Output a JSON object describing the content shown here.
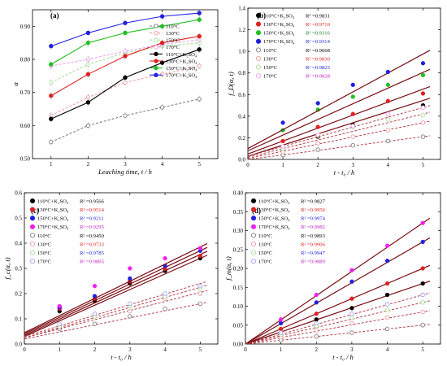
{
  "chart_data": [
    {
      "id": "a",
      "type": "line",
      "panel_label": "(a)",
      "xlabel": "Leaching time, t / h",
      "ylabel": "α",
      "xlim": [
        0.5,
        5.5
      ],
      "ylim": [
        0.5,
        0.95
      ],
      "xticks": [
        1,
        2,
        3,
        4,
        5
      ],
      "yticks": [
        0.5,
        0.6,
        0.7,
        0.8,
        0.9
      ],
      "x": [
        1,
        2,
        3,
        4,
        5
      ],
      "legend_position": "top-right",
      "series": [
        {
          "name": "110°C",
          "color": "#7f7f7f",
          "dashed": true,
          "values": [
            0.55,
            0.6,
            0.63,
            0.655,
            0.68
          ]
        },
        {
          "name": "130°C",
          "color": "#e8a0a0",
          "dashed": true,
          "values": [
            0.63,
            0.685,
            0.73,
            0.755,
            0.78
          ]
        },
        {
          "name": "150°C",
          "color": "#a6e29a",
          "dashed": true,
          "values": [
            0.73,
            0.785,
            0.82,
            0.84,
            0.85
          ]
        },
        {
          "name": "170°C",
          "color": "#f0a0ee",
          "dashed": true,
          "values": [
            0.78,
            0.8,
            0.825,
            0.845,
            0.86
          ]
        },
        {
          "name": "110°C+K₂SO₄",
          "color": "#000000",
          "dashed": false,
          "values": [
            0.62,
            0.67,
            0.745,
            0.79,
            0.83
          ]
        },
        {
          "name": "130°C+K₂SO₄",
          "color": "#e02020",
          "dashed": false,
          "values": [
            0.69,
            0.755,
            0.81,
            0.85,
            0.87
          ]
        },
        {
          "name": "150°C+K₂SO₄",
          "color": "#22c022",
          "dashed": false,
          "values": [
            0.785,
            0.85,
            0.88,
            0.9,
            0.92
          ]
        },
        {
          "name": "170°C+K₂SO₄",
          "color": "#2020e0",
          "dashed": false,
          "values": [
            0.84,
            0.88,
            0.91,
            0.93,
            0.94
          ]
        }
      ]
    },
    {
      "id": "b",
      "type": "scatter",
      "panel_label": "(b)",
      "xlabel": "t - t₀ / h",
      "ylabel": "f_D(α, t)",
      "xlim": [
        0,
        5.5
      ],
      "ylim": [
        0,
        1.4
      ],
      "xticks": [
        0,
        1,
        2,
        3,
        4,
        5
      ],
      "yticks": [
        0,
        0.2,
        0.4,
        0.6,
        0.8,
        1.0,
        1.2,
        1.4
      ],
      "x": [
        1,
        2,
        3,
        4,
        5
      ],
      "legend_position": "top-left",
      "series": [
        {
          "name": "110°C+K₂SO₄",
          "r2": "R² =0.9831",
          "r2_color": "#000000",
          "color": "#000000",
          "filled": true,
          "values": [
            0.08,
            0.21,
            0.32,
            0.42,
            0.5
          ],
          "fit": [
            0.03,
            0.103
          ]
        },
        {
          "name": "130°C+K₂SO₄",
          "r2": "R² =0.9710",
          "r2_color": "#e02020",
          "color": "#e02020",
          "filled": true,
          "values": [
            0.17,
            0.3,
            0.42,
            0.54,
            0.61
          ],
          "fit": [
            0.05,
            0.12
          ]
        },
        {
          "name": "150°C+K₂SO₄",
          "r2": "R² =0.9316",
          "r2_color": "#1f7a1f",
          "color": "#22c022",
          "filled": true,
          "values": [
            0.27,
            0.46,
            0.58,
            0.69,
            0.78
          ],
          "fit": [
            0.08,
            0.145
          ]
        },
        {
          "name": "170°C+K₂SO₄",
          "r2": "R² =0.9314",
          "r2_color": "#2020e0",
          "color": "#2020e0",
          "filled": true,
          "values": [
            0.34,
            0.52,
            0.69,
            0.81,
            0.89
          ],
          "fit": [
            0.1,
            0.175
          ]
        },
        {
          "name": "110°C",
          "r2": "R² =0.9668",
          "r2_color": "#000000",
          "color": "#7f7f7f",
          "filled": false,
          "values": [
            0.04,
            0.09,
            0.13,
            0.17,
            0.21
          ],
          "fit": [
            0.0,
            0.042
          ]
        },
        {
          "name": "130°C",
          "r2": "R² =0.9830",
          "r2_color": "#e02020",
          "color": "#e8a0a0",
          "filled": false,
          "values": [
            0.07,
            0.15,
            0.21,
            0.27,
            0.34
          ],
          "fit": [
            0.01,
            0.066
          ]
        },
        {
          "name": "150°C",
          "r2": "R² =0.9825",
          "r2_color": "#2020e0",
          "color": "#a6e29a",
          "filled": false,
          "values": [
            0.1,
            0.22,
            0.3,
            0.37,
            0.41
          ],
          "fit": [
            0.02,
            0.08
          ]
        },
        {
          "name": "170°C",
          "r2": "R² =0.9828",
          "r2_color": "#c020c0",
          "color": "#f0a0ee",
          "filled": false,
          "values": [
            0.12,
            0.23,
            0.31,
            0.42,
            0.48
          ],
          "fit": [
            0.03,
            0.09
          ]
        }
      ]
    },
    {
      "id": "c",
      "type": "scatter",
      "panel_label": "(c)",
      "xlabel": "t - t₀ / h",
      "ylabel": "f_c(α, t)",
      "xlim": [
        0,
        5.5
      ],
      "ylim": [
        0,
        0.6
      ],
      "xticks": [
        0,
        1,
        2,
        3,
        4,
        5
      ],
      "yticks": [
        0,
        0.1,
        0.2,
        0.3,
        0.4,
        0.5,
        0.6
      ],
      "x": [
        1,
        2,
        3,
        4,
        5
      ],
      "legend_position": "top-left",
      "series": [
        {
          "name": "110°C+K₂SO₄",
          "r2": "R² =0.9566",
          "r2_color": "#000000",
          "color": "#000000",
          "filled": true,
          "values": [
            0.13,
            0.17,
            0.24,
            0.29,
            0.34
          ],
          "fit": [
            0.03,
            0.062
          ]
        },
        {
          "name": "130°C+K₂SO₄",
          "r2": "R² =0.9514",
          "r2_color": "#e02020",
          "color": "#e02020",
          "filled": true,
          "values": [
            0.14,
            0.18,
            0.25,
            0.3,
            0.35
          ],
          "fit": [
            0.035,
            0.064
          ]
        },
        {
          "name": "150°C+K₂SO₄",
          "r2": "R² =0.9211",
          "r2_color": "#2020e0",
          "color": "#2020e0",
          "filled": true,
          "values": [
            0.145,
            0.19,
            0.26,
            0.31,
            0.37
          ],
          "fit": [
            0.04,
            0.066
          ]
        },
        {
          "name": "170°C+K₂SO₄",
          "r2": "R² =0.9295",
          "r2_color": "#c020c0",
          "color": "#f020f0",
          "filled": true,
          "values": [
            0.15,
            0.23,
            0.3,
            0.34,
            0.38
          ],
          "fit": [
            0.045,
            0.068
          ]
        },
        {
          "name": "110°C",
          "r2": "R² =0.9450",
          "r2_color": "#000000",
          "color": "#7f7f7f",
          "filled": false,
          "values": [
            0.06,
            0.08,
            0.11,
            0.14,
            0.16
          ],
          "fit": [
            0.02,
            0.028
          ]
        },
        {
          "name": "130°C",
          "r2": "R² =0.9733",
          "r2_color": "#e02020",
          "color": "#e8a0a0",
          "filled": false,
          "values": [
            0.07,
            0.11,
            0.13,
            0.18,
            0.2
          ],
          "fit": [
            0.025,
            0.036
          ]
        },
        {
          "name": "150°C",
          "r2": "R² =0.9785",
          "r2_color": "#2020e0",
          "color": "#a6e29a",
          "filled": false,
          "values": [
            0.07,
            0.11,
            0.15,
            0.19,
            0.22
          ],
          "fit": [
            0.025,
            0.04
          ]
        },
        {
          "name": "170°C",
          "r2": "R² =0.9805",
          "r2_color": "#c020c0",
          "color": "#a0a0f0",
          "filled": false,
          "values": [
            0.08,
            0.12,
            0.16,
            0.2,
            0.23
          ],
          "fit": [
            0.03,
            0.042
          ]
        }
      ]
    },
    {
      "id": "d",
      "type": "scatter",
      "panel_label": "(d)",
      "xlabel": "t - t₀ / h",
      "ylabel": "f_m(α, t)",
      "xlim": [
        0,
        5.5
      ],
      "ylim": [
        0,
        0.4
      ],
      "xticks": [
        0,
        1,
        2,
        3,
        4,
        5
      ],
      "yticks": [
        0,
        0.05,
        0.1,
        0.15,
        0.2,
        0.25,
        0.3,
        0.35,
        0.4
      ],
      "x": [
        1,
        2,
        3,
        4,
        5
      ],
      "legend_position": "top-left",
      "series": [
        {
          "name": "110°C+K₂SO₄",
          "r2": "R² =0.9827",
          "r2_color": "#000000",
          "color": "#000000",
          "filled": true,
          "values": [
            0.03,
            0.065,
            0.095,
            0.13,
            0.16
          ],
          "fit": [
            0.0,
            0.032
          ]
        },
        {
          "name": "130°C+K₂SO₄",
          "r2": "R² =0.9956",
          "r2_color": "#e02020",
          "color": "#e02020",
          "filled": true,
          "values": [
            0.04,
            0.08,
            0.12,
            0.16,
            0.2
          ],
          "fit": [
            0.0,
            0.04
          ]
        },
        {
          "name": "150°C+K₂SO₄",
          "r2": "R² =0.9974",
          "r2_color": "#2020e0",
          "color": "#2020e0",
          "filled": true,
          "values": [
            0.055,
            0.11,
            0.165,
            0.22,
            0.27
          ],
          "fit": [
            0.0,
            0.054
          ]
        },
        {
          "name": "170°C+K₂SO₄",
          "r2": "R² =0.9982",
          "r2_color": "#c020c0",
          "color": "#f020f0",
          "filled": true,
          "values": [
            0.065,
            0.13,
            0.195,
            0.26,
            0.32
          ],
          "fit": [
            0.0,
            0.064
          ]
        },
        {
          "name": "110°C",
          "r2": "R² =0.9893",
          "r2_color": "#000000",
          "color": "#7f7f7f",
          "filled": false,
          "values": [
            0.01,
            0.02,
            0.03,
            0.04,
            0.05
          ],
          "fit": [
            0.0,
            0.01
          ]
        },
        {
          "name": "130°C",
          "r2": "R² =0.9906",
          "r2_color": "#e02020",
          "color": "#e8a0a0",
          "filled": false,
          "values": [
            0.018,
            0.036,
            0.055,
            0.07,
            0.085
          ],
          "fit": [
            0.0,
            0.017
          ]
        },
        {
          "name": "150°C",
          "r2": "R² =0.9947",
          "r2_color": "#2020e0",
          "color": "#a6e29a",
          "filled": false,
          "values": [
            0.025,
            0.048,
            0.07,
            0.09,
            0.11
          ],
          "fit": [
            0.0,
            0.022
          ]
        },
        {
          "name": "170°C",
          "r2": "R² =0.9889",
          "r2_color": "#c020c0",
          "color": "#a0a0f0",
          "filled": false,
          "values": [
            0.03,
            0.055,
            0.08,
            0.105,
            0.13
          ],
          "fit": [
            0.0,
            0.026
          ]
        }
      ]
    }
  ]
}
